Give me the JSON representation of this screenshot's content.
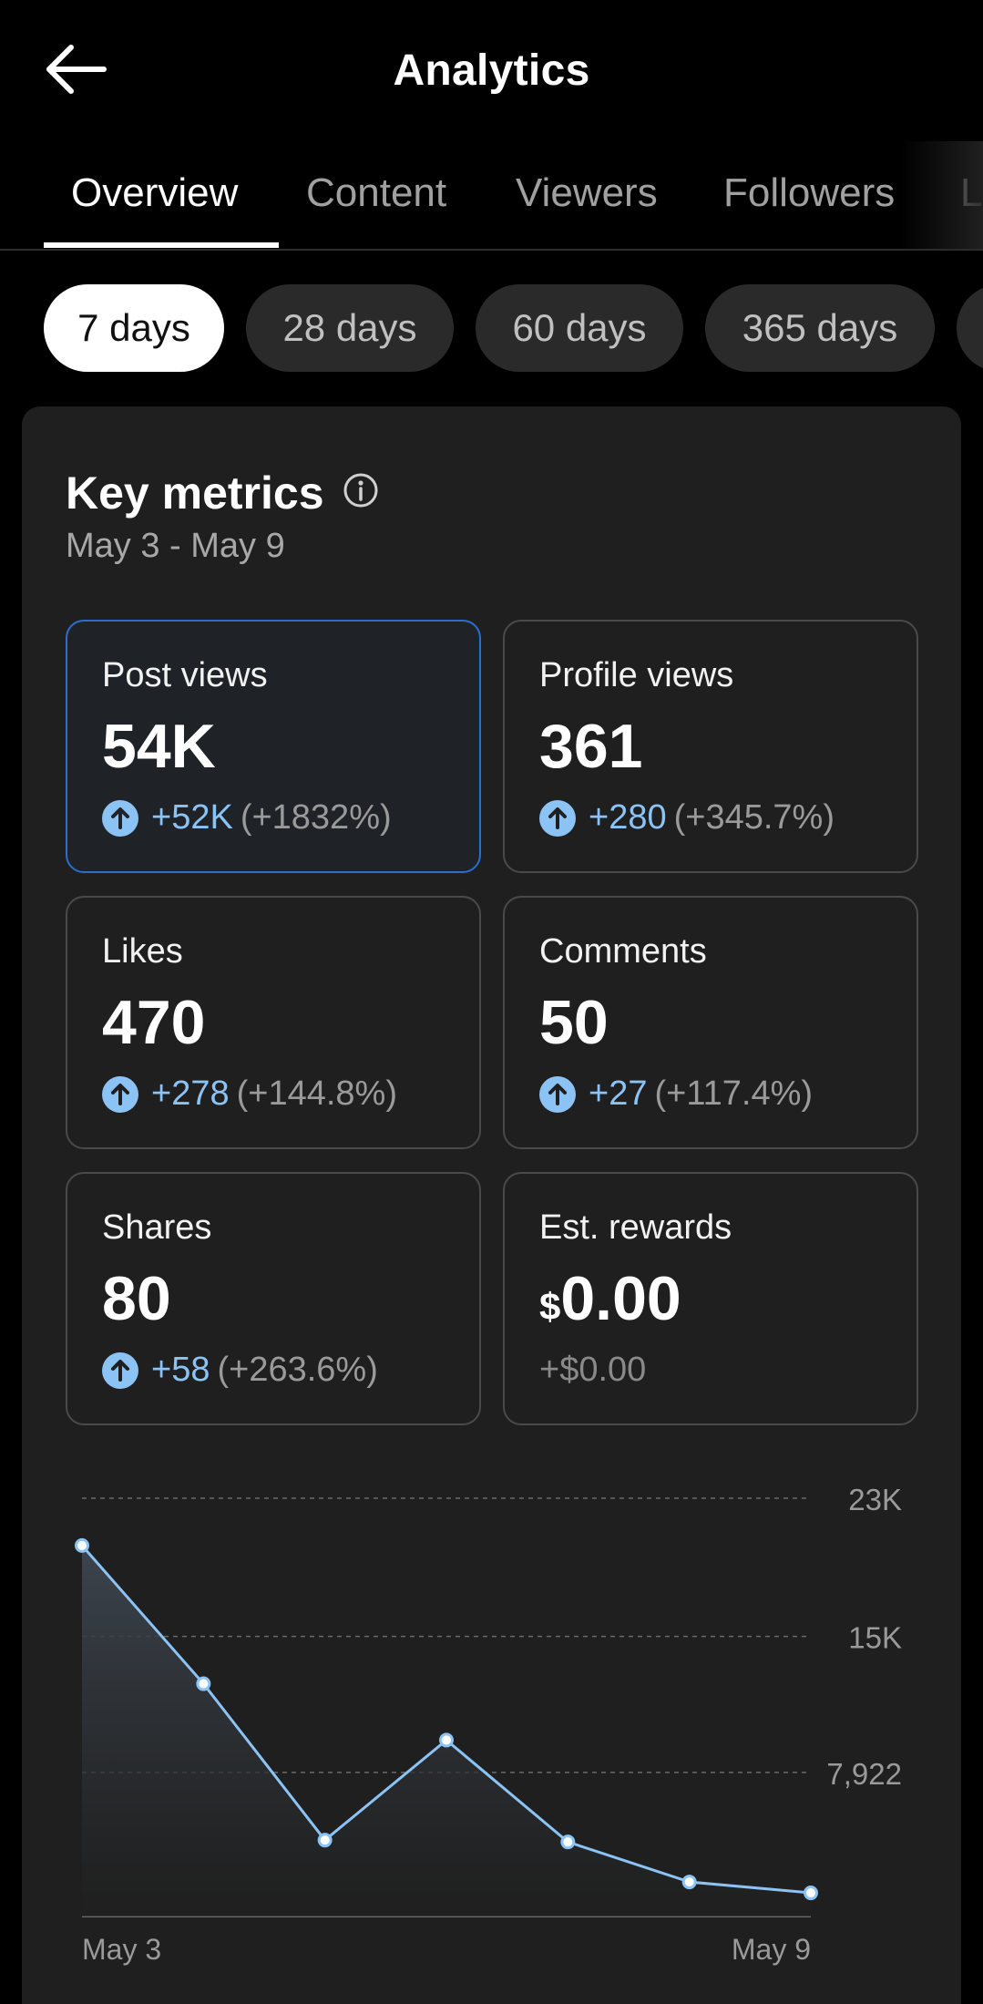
{
  "header": {
    "title": "Analytics",
    "back_icon": "arrow-left-icon"
  },
  "tabs": [
    {
      "label": "Overview",
      "active": true
    },
    {
      "label": "Content",
      "active": false
    },
    {
      "label": "Viewers",
      "active": false
    },
    {
      "label": "Followers",
      "active": false
    },
    {
      "label": "L",
      "active": false
    }
  ],
  "periods": [
    {
      "label": "7 days",
      "active": true
    },
    {
      "label": "28 days",
      "active": false
    },
    {
      "label": "60 days",
      "active": false
    },
    {
      "label": "365 days",
      "active": false
    }
  ],
  "key_metrics": {
    "title": "Key metrics",
    "info_icon": "info-icon",
    "date_range": "May 3 - May 9",
    "cards": [
      {
        "label": "Post views",
        "value": "54K",
        "delta": "+52K",
        "pct": "(+1832%)",
        "selected": true
      },
      {
        "label": "Profile views",
        "value": "361",
        "delta": "+280",
        "pct": "(+345.7%)"
      },
      {
        "label": "Likes",
        "value": "470",
        "delta": "+278",
        "pct": "(+144.8%)"
      },
      {
        "label": "Comments",
        "value": "50",
        "delta": "+27",
        "pct": "(+117.4%)"
      },
      {
        "label": "Shares",
        "value": "80",
        "delta": "+58",
        "pct": "(+263.6%)"
      },
      {
        "label": "Est. rewards",
        "currency": "$",
        "value": "0.00",
        "flat_change": "+$0.00"
      }
    ]
  },
  "colors": {
    "accent_blue": "#8cc3f5",
    "selected_border": "#2a6fd0",
    "card_bg": "#1f1f1f"
  },
  "chart_data": {
    "type": "area",
    "x": [
      "May 3",
      "May 4",
      "May 5",
      "May 6",
      "May 7",
      "May 8",
      "May 9"
    ],
    "series": [
      {
        "values": [
          20400,
          12800,
          4200,
          9700,
          4100,
          1900,
          1300
        ]
      }
    ],
    "ylim": [
      0,
      23000
    ],
    "yticks": [
      "23K",
      "15K",
      "7,922"
    ],
    "ytick_values": [
      23000,
      15400,
      7922
    ],
    "xtick_labels": [
      "May 3",
      "May 9"
    ],
    "grid": true
  }
}
